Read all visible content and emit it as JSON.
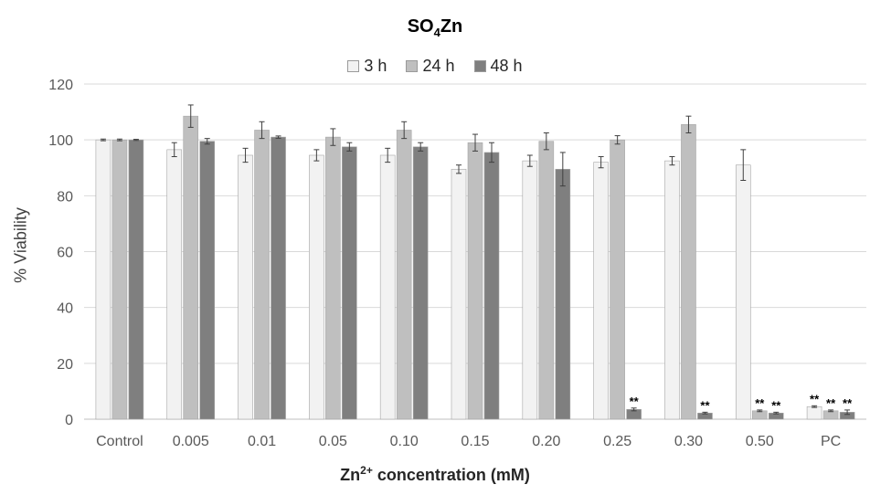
{
  "chart_data": {
    "type": "bar",
    "title_main": "SO",
    "title_sub": "4",
    "title_end": "Zn",
    "xlabel_main": "Zn",
    "xlabel_sup": "2+",
    "xlabel_end": " concentration (mM)",
    "ylabel": "% Viability",
    "ylim": [
      0,
      120
    ],
    "yticks": [
      "0",
      "20",
      "40",
      "60",
      "80",
      "100",
      "120"
    ],
    "grid": true,
    "legend_position": "top",
    "categories": [
      "Control",
      "0.005",
      "0.01",
      "0.05",
      "0.10",
      "0.15",
      "0.20",
      "0.25",
      "0.30",
      "0.50",
      "PC"
    ],
    "series": [
      {
        "name": "3 h",
        "color": "#f2f2f2",
        "values": [
          100,
          96.5,
          94.5,
          94.5,
          94.5,
          89.5,
          92.5,
          92,
          92.5,
          91,
          4.5
        ],
        "errors": [
          0.3,
          2.5,
          2.5,
          2,
          2.5,
          1.5,
          2,
          2,
          1.5,
          5.5,
          0.3
        ],
        "sig": [
          "",
          "",
          "",
          "",
          "",
          "",
          "",
          "",
          "",
          "",
          "**"
        ]
      },
      {
        "name": "24 h",
        "color": "#bfbfbf",
        "values": [
          100,
          108.5,
          103.5,
          101,
          103.5,
          99,
          99.5,
          100,
          105.5,
          3,
          3
        ],
        "errors": [
          0.3,
          4,
          3,
          3,
          3,
          3,
          3,
          1.5,
          3,
          0.3,
          0.3
        ],
        "sig": [
          "",
          "",
          "",
          "",
          "",
          "",
          "",
          "",
          "",
          "**",
          "**"
        ]
      },
      {
        "name": "48 h",
        "color": "#7f7f7f",
        "values": [
          100,
          99.5,
          101,
          97.5,
          97.5,
          95.5,
          89.5,
          3.5,
          2.2,
          2.2,
          2.5
        ],
        "errors": [
          0.2,
          1,
          0.4,
          1.5,
          1.5,
          3.5,
          6,
          0.5,
          0.3,
          0.3,
          0.8
        ],
        "sig": [
          "",
          "",
          "",
          "",
          "",
          "",
          "",
          "**",
          "**",
          "**",
          "**"
        ]
      }
    ]
  }
}
